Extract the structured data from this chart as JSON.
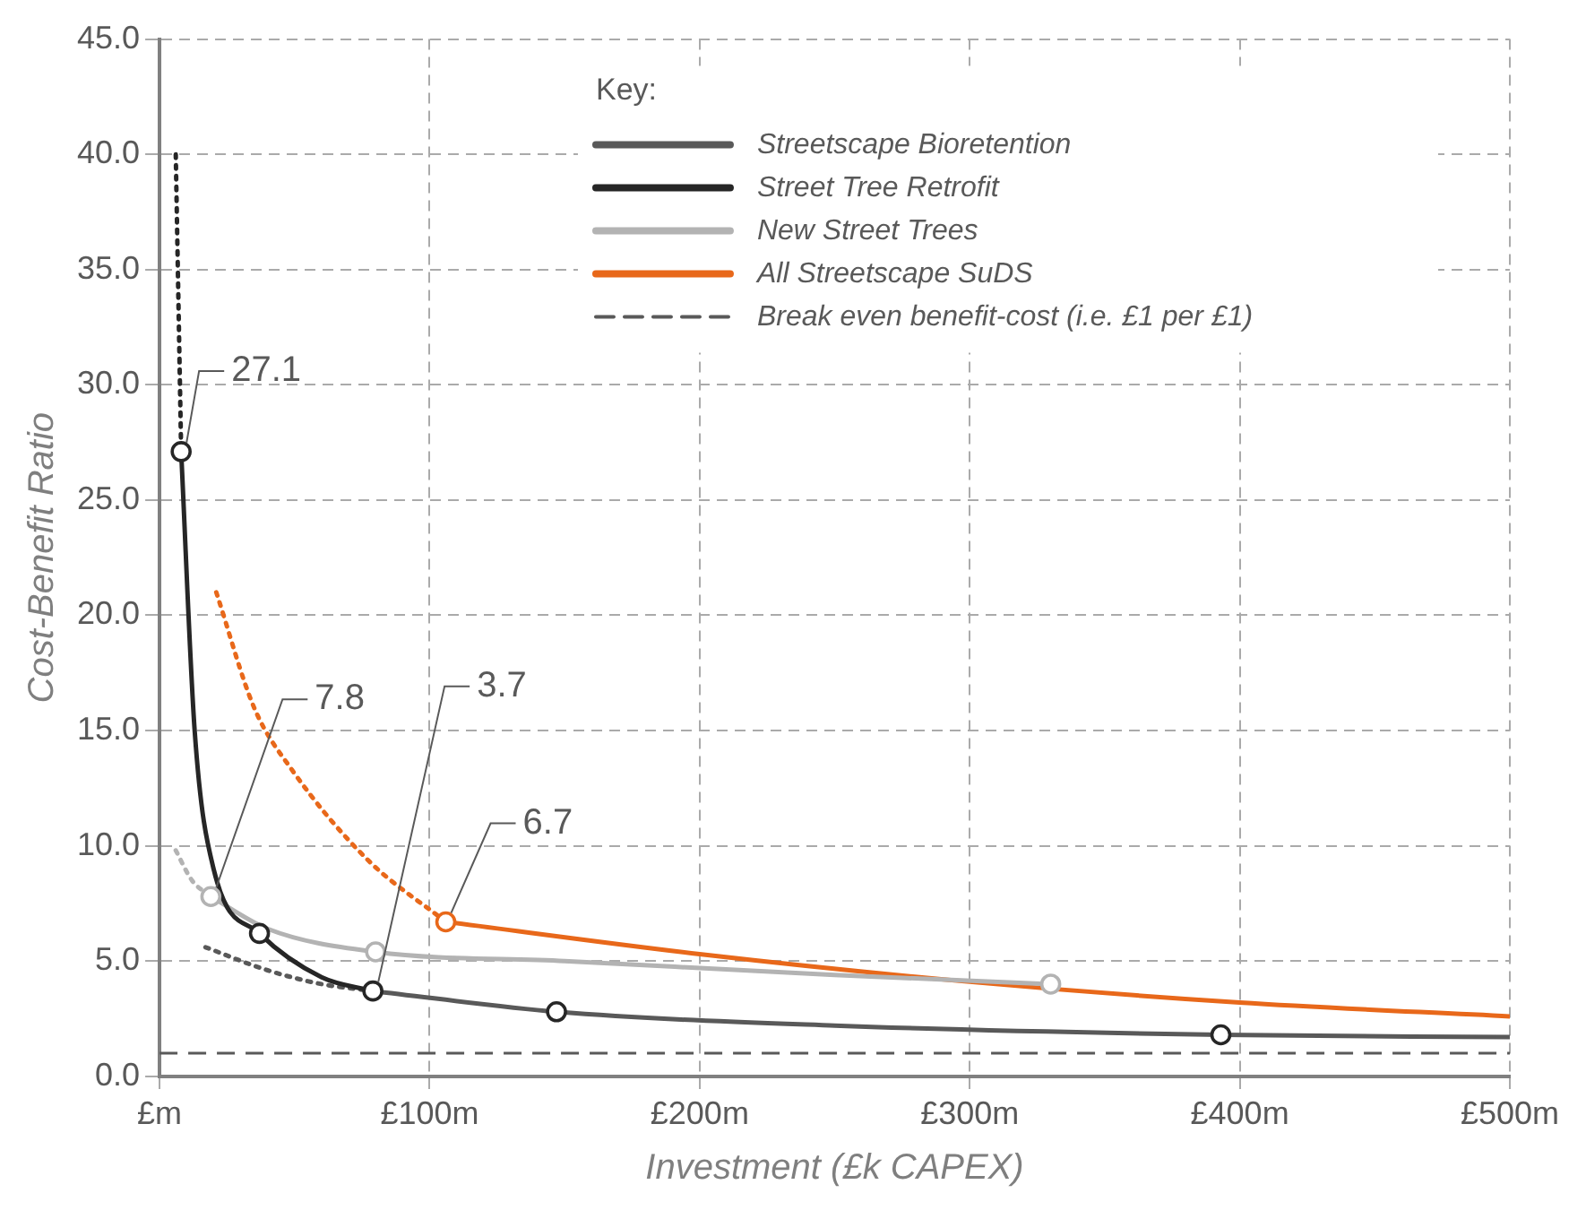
{
  "chart_data": {
    "type": "line",
    "xlabel": "Investment (£k CAPEX)",
    "ylabel": "Cost-Benefit Ratio",
    "legend_title": "Key:",
    "xlim": [
      0,
      500
    ],
    "xticks": [
      {
        "value": 0,
        "label": "£m"
      },
      {
        "value": 100,
        "label": "£100m"
      },
      {
        "value": 200,
        "label": "£200m"
      },
      {
        "value": 300,
        "label": "£300m"
      },
      {
        "value": 400,
        "label": "£400m"
      },
      {
        "value": 500,
        "label": "£500m"
      }
    ],
    "ylim": [
      0,
      45
    ],
    "yticks": [
      {
        "value": 0,
        "label": "0.0"
      },
      {
        "value": 5,
        "label": "5.0"
      },
      {
        "value": 10,
        "label": "10.0"
      },
      {
        "value": 15,
        "label": "15.0"
      },
      {
        "value": 20,
        "label": "20.0"
      },
      {
        "value": 25,
        "label": "25.0"
      },
      {
        "value": 30,
        "label": "30.0"
      },
      {
        "value": 35,
        "label": "35.0"
      },
      {
        "value": 40,
        "label": "40.0"
      },
      {
        "value": 45,
        "label": "45.0"
      }
    ],
    "grid": true,
    "legend": "top right",
    "series": [
      {
        "name": "Streetscape Bioretention",
        "color": "#595959",
        "x": [
          79,
          147,
          250,
          393,
          500
        ],
        "values": [
          3.7,
          2.8,
          2.2,
          1.8,
          1.7
        ],
        "line_style": "solid",
        "marker": "none"
      },
      {
        "name": "Street Tree Retrofit",
        "color": "#262626",
        "x": [
          8,
          13,
          20,
          37,
          60,
          79
        ],
        "values": [
          27.1,
          15,
          9,
          6.2,
          4.3,
          3.7
        ],
        "line_style": "solid",
        "marker": "none"
      },
      {
        "name": "New Street Trees",
        "color": "#b3b3b3",
        "x": [
          19,
          40,
          80,
          150,
          250,
          330
        ],
        "values": [
          7.8,
          6.4,
          5.4,
          5.0,
          4.4,
          4.0
        ],
        "line_style": "solid",
        "marker": "none"
      },
      {
        "name": "All Streetscape SuDS",
        "color": "#e8681a",
        "x": [
          106,
          200,
          300,
          400,
          500
        ],
        "values": [
          6.7,
          5.3,
          4.1,
          3.2,
          2.6
        ],
        "line_style": "solid",
        "marker": "none"
      },
      {
        "color": "#595959",
        "x": [
          17,
          40,
          60,
          79
        ],
        "values": [
          5.6,
          4.6,
          4.0,
          3.7
        ],
        "line_style": "dotted",
        "marker": "none"
      },
      {
        "color": "#262626",
        "x": [
          6,
          8
        ],
        "values": [
          40,
          27.1
        ],
        "line_style": "dotted",
        "marker": "none"
      },
      {
        "color": "#b3b3b3",
        "x": [
          6,
          12,
          19
        ],
        "values": [
          9.8,
          8.5,
          7.8
        ],
        "line_style": "dotted",
        "marker": "none"
      },
      {
        "color": "#e8681a",
        "x": [
          21,
          35,
          49,
          77,
          106
        ],
        "values": [
          21,
          16,
          13.3,
          9.4,
          6.7
        ],
        "line_style": "dotted",
        "marker": "none"
      },
      {
        "type": "scatter",
        "color": "#262626",
        "x": [
          8,
          37,
          79,
          147,
          393
        ],
        "values": [
          27.1,
          6.2,
          3.7,
          2.8,
          1.8
        ],
        "marker": "circle"
      },
      {
        "type": "scatter",
        "color": "#b3b3b3",
        "x": [
          19,
          80,
          330
        ],
        "values": [
          7.8,
          5.4,
          4.0
        ],
        "marker": "circle"
      },
      {
        "type": "scatter",
        "color": "#e8681a",
        "x": [
          106
        ],
        "values": [
          6.7
        ],
        "marker": "circle"
      }
    ],
    "ref_lines": [
      {
        "axis": "y",
        "value": 1,
        "label": "Break even benefit-cost (i.e. £1 per £1)",
        "color": "#595959",
        "line_style": "dashed"
      }
    ],
    "annotations": [
      {
        "text": "27.1",
        "x": 8,
        "y": 27.1
      },
      {
        "text": "7.8",
        "x": 19,
        "y": 7.8
      },
      {
        "text": "3.7",
        "x": 79,
        "y": 3.7
      },
      {
        "text": "6.7",
        "x": 106,
        "y": 6.7
      }
    ]
  }
}
